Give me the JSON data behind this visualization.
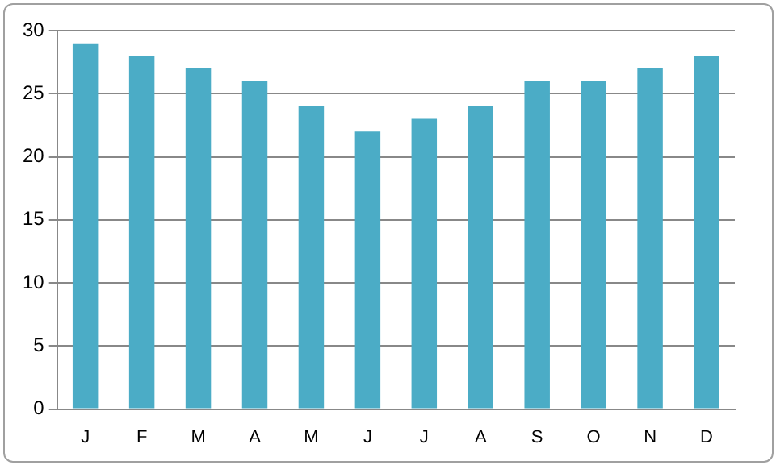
{
  "chart_data": {
    "type": "bar",
    "categories": [
      "J",
      "F",
      "M",
      "A",
      "M",
      "J",
      "J",
      "A",
      "S",
      "O",
      "N",
      "D"
    ],
    "values": [
      29,
      28,
      27,
      26,
      24,
      22,
      23,
      24,
      26,
      26,
      27,
      28
    ],
    "color": "#4bacc6",
    "ylim": [
      0,
      30
    ],
    "yticks": [
      0,
      5,
      10,
      15,
      20,
      25,
      30
    ],
    "grid": "y",
    "legend": false
  }
}
